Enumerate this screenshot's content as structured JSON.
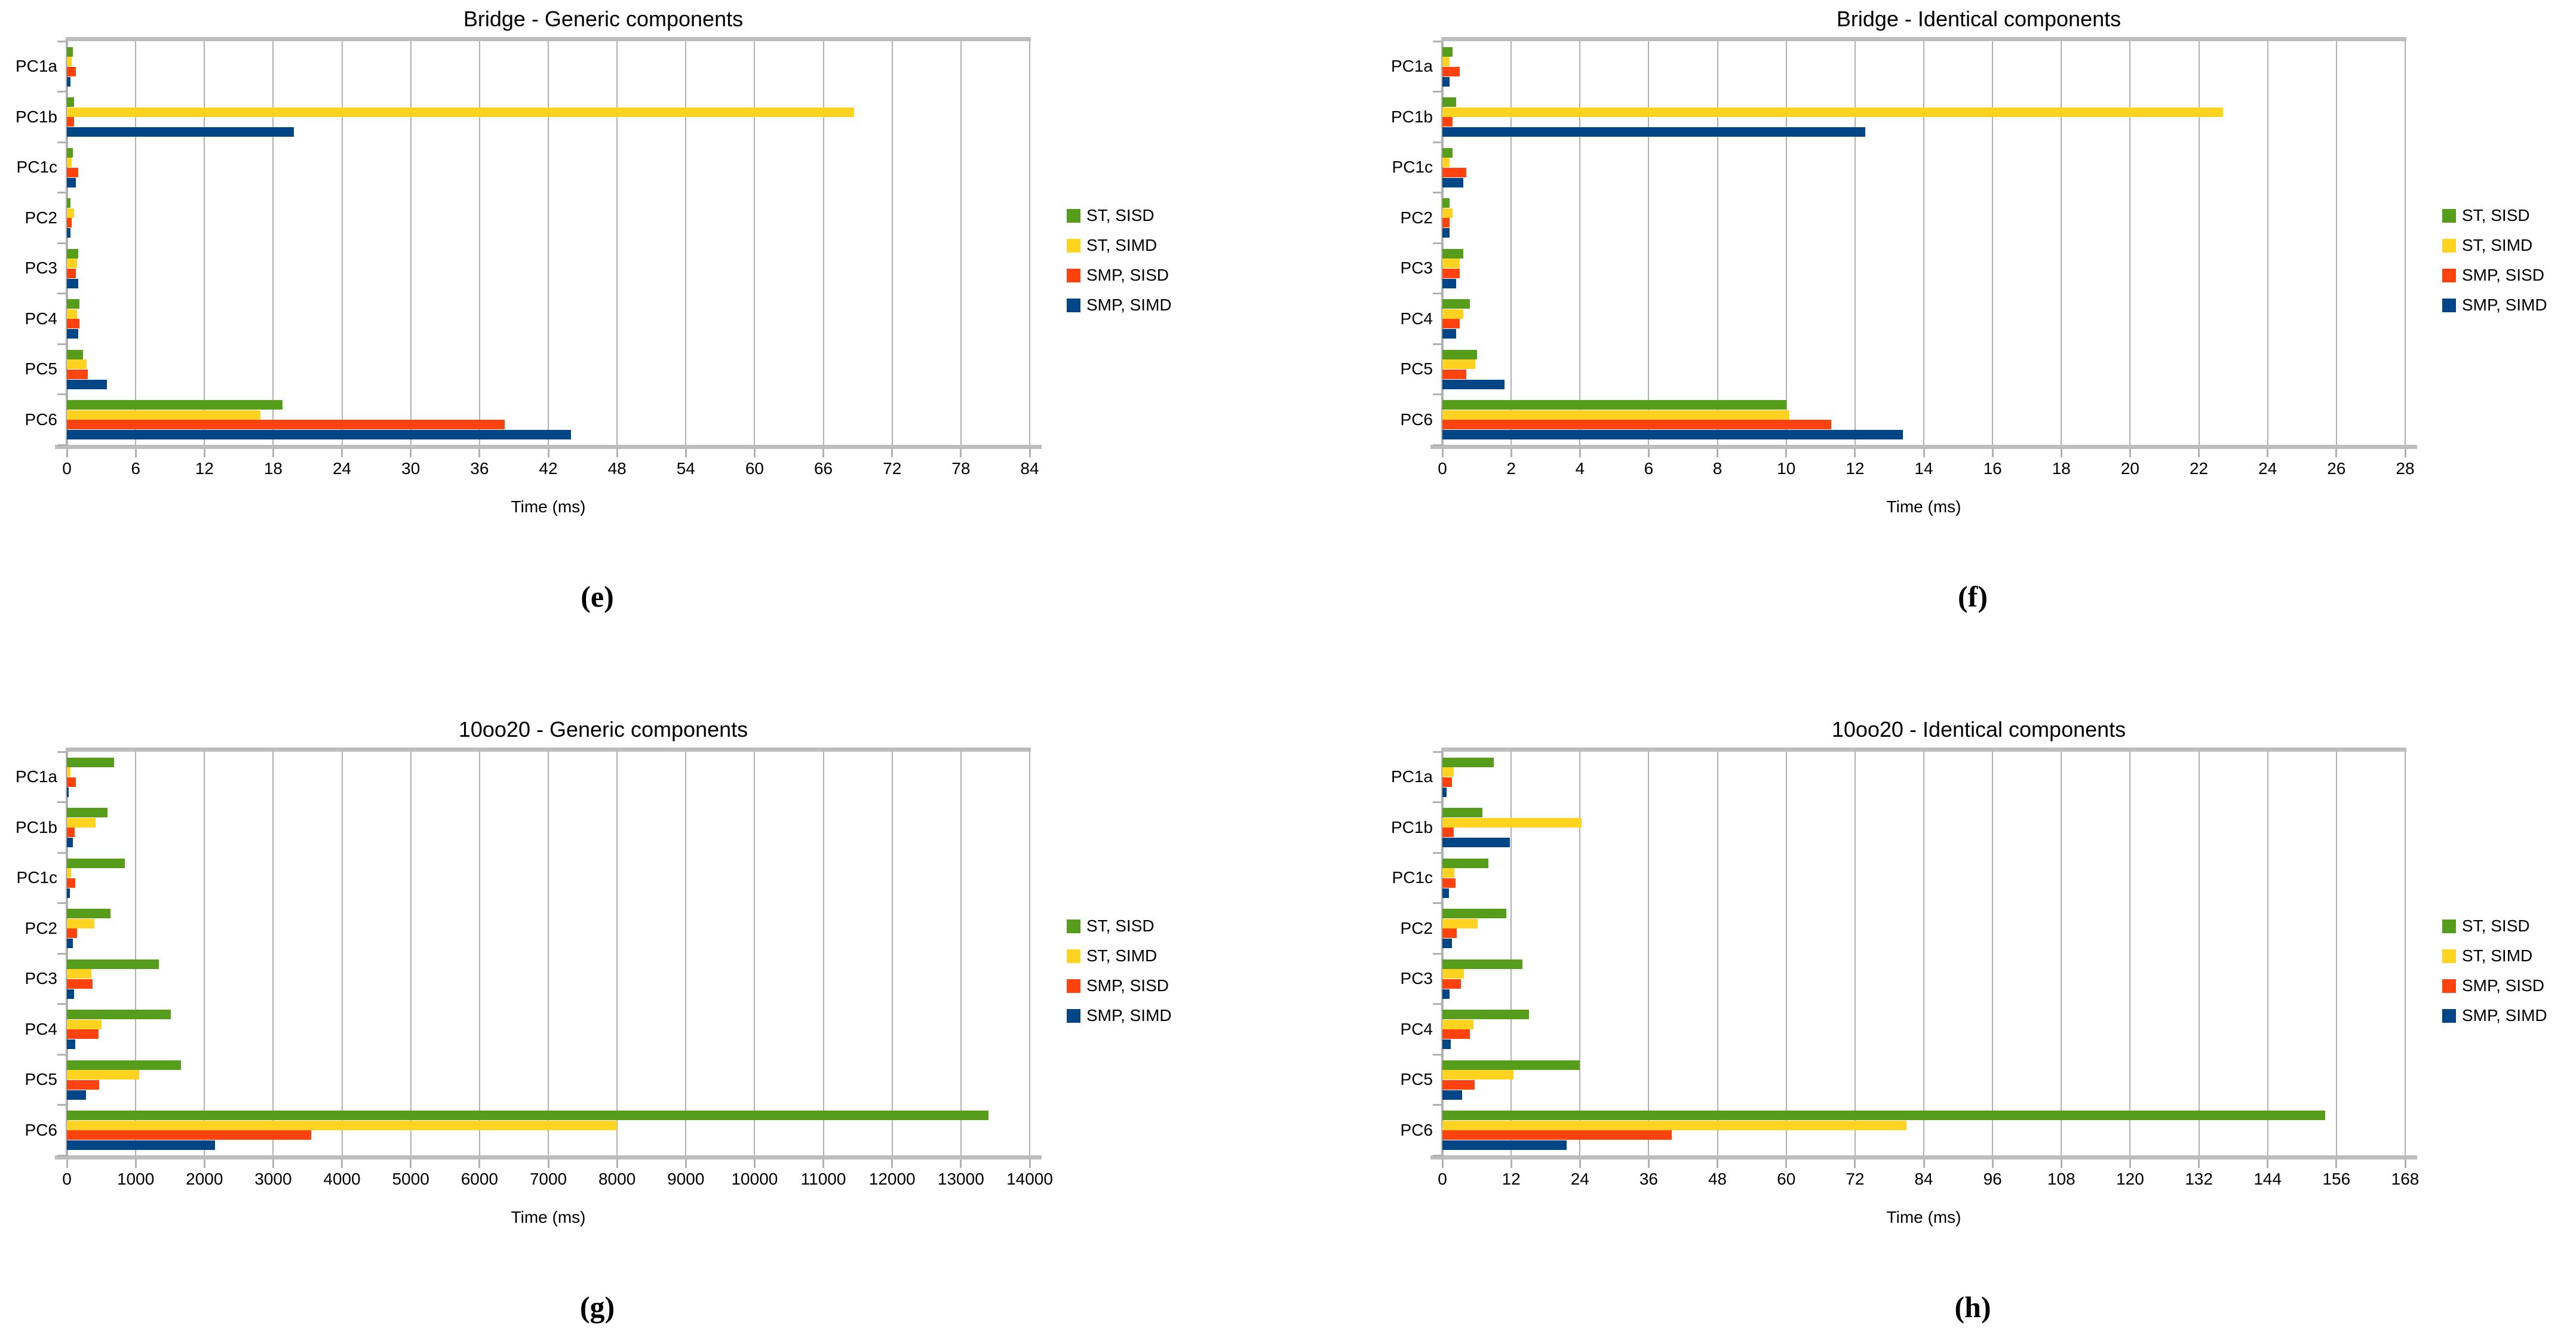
{
  "chart_data": [
    {
      "type": "bar",
      "orientation": "horizontal",
      "title": "Bridge - Generic components",
      "caption": "(e)",
      "xlabel": "Time (ms)",
      "xlim": [
        0,
        84
      ],
      "xstep": 6,
      "grid": true,
      "legend_position": "right",
      "categories": [
        "PC1a",
        "PC1b",
        "PC1c",
        "PC2",
        "PC3",
        "PC4",
        "PC5",
        "PC6"
      ],
      "series": [
        {
          "name": "ST, SISD",
          "color": "#579D1C",
          "values": [
            0.5,
            0.6,
            0.5,
            0.3,
            1.0,
            1.1,
            1.4,
            18.8
          ]
        },
        {
          "name": "ST, SIMD",
          "color": "#FFD320",
          "values": [
            0.4,
            68.7,
            0.4,
            0.6,
            0.9,
            0.9,
            1.7,
            16.9
          ]
        },
        {
          "name": "SMP, SISD",
          "color": "#FF420E",
          "values": [
            0.8,
            0.6,
            1.0,
            0.4,
            0.8,
            1.1,
            1.8,
            38.2
          ]
        },
        {
          "name": "SMP, SIMD",
          "color": "#004586",
          "values": [
            0.3,
            19.8,
            0.8,
            0.3,
            1.0,
            1.0,
            3.5,
            44.0
          ]
        }
      ]
    },
    {
      "type": "bar",
      "orientation": "horizontal",
      "title": "Bridge - Identical components",
      "caption": "(f)",
      "xlabel": "Time (ms)",
      "xlim": [
        0,
        28
      ],
      "xstep": 2,
      "grid": true,
      "legend_position": "right",
      "categories": [
        "PC1a",
        "PC1b",
        "PC1c",
        "PC2",
        "PC3",
        "PC4",
        "PC5",
        "PC6"
      ],
      "series": [
        {
          "name": "ST, SISD",
          "color": "#579D1C",
          "values": [
            0.3,
            0.4,
            0.3,
            0.2,
            0.6,
            0.8,
            1.0,
            10.0
          ]
        },
        {
          "name": "ST, SIMD",
          "color": "#FFD320",
          "values": [
            0.2,
            22.7,
            0.2,
            0.3,
            0.5,
            0.6,
            0.95,
            10.1
          ]
        },
        {
          "name": "SMP, SISD",
          "color": "#FF420E",
          "values": [
            0.5,
            0.3,
            0.7,
            0.2,
            0.5,
            0.5,
            0.7,
            11.3
          ]
        },
        {
          "name": "SMP, SIMD",
          "color": "#004586",
          "values": [
            0.2,
            12.3,
            0.6,
            0.2,
            0.4,
            0.4,
            1.8,
            13.4
          ]
        }
      ]
    },
    {
      "type": "bar",
      "orientation": "horizontal",
      "title": "10oo20 - Generic components",
      "caption": "(g)",
      "xlabel": "Time (ms)",
      "xlim": [
        0,
        14000
      ],
      "xstep": 1000,
      "grid": true,
      "legend_position": "right",
      "categories": [
        "PC1a",
        "PC1b",
        "PC1c",
        "PC2",
        "PC3",
        "PC4",
        "PC5",
        "PC6"
      ],
      "series": [
        {
          "name": "ST, SISD",
          "color": "#579D1C",
          "values": [
            690,
            590,
            840,
            630,
            1340,
            1510,
            1660,
            13400
          ]
        },
        {
          "name": "ST, SIMD",
          "color": "#FFD320",
          "values": [
            50,
            420,
            60,
            400,
            360,
            500,
            1050,
            8000
          ]
        },
        {
          "name": "SMP, SISD",
          "color": "#FF420E",
          "values": [
            130,
            110,
            120,
            150,
            370,
            460,
            470,
            3550
          ]
        },
        {
          "name": "SMP, SIMD",
          "color": "#004586",
          "values": [
            30,
            90,
            40,
            90,
            100,
            120,
            280,
            2150
          ]
        }
      ]
    },
    {
      "type": "bar",
      "orientation": "horizontal",
      "title": "10oo20 - Identical components",
      "caption": "(h)",
      "xlabel": "Time (ms)",
      "xlim": [
        0,
        168
      ],
      "xstep": 12,
      "grid": true,
      "legend_position": "right",
      "categories": [
        "PC1a",
        "PC1b",
        "PC1c",
        "PC2",
        "PC3",
        "PC4",
        "PC5",
        "PC6"
      ],
      "series": [
        {
          "name": "ST, SISD",
          "color": "#579D1C",
          "values": [
            9,
            7,
            8,
            11.2,
            14,
            15.1,
            24,
            154
          ]
        },
        {
          "name": "ST, SIMD",
          "color": "#FFD320",
          "values": [
            2,
            24.3,
            2.1,
            6.1,
            3.7,
            5.4,
            12.4,
            81
          ]
        },
        {
          "name": "SMP, SISD",
          "color": "#FF420E",
          "values": [
            1.7,
            2.0,
            2.3,
            2.5,
            3.2,
            4.8,
            5.6,
            40
          ]
        },
        {
          "name": "SMP, SIMD",
          "color": "#004586",
          "values": [
            0.7,
            11.8,
            1.1,
            1.7,
            1.2,
            1.5,
            3.4,
            21.7
          ]
        }
      ]
    }
  ]
}
